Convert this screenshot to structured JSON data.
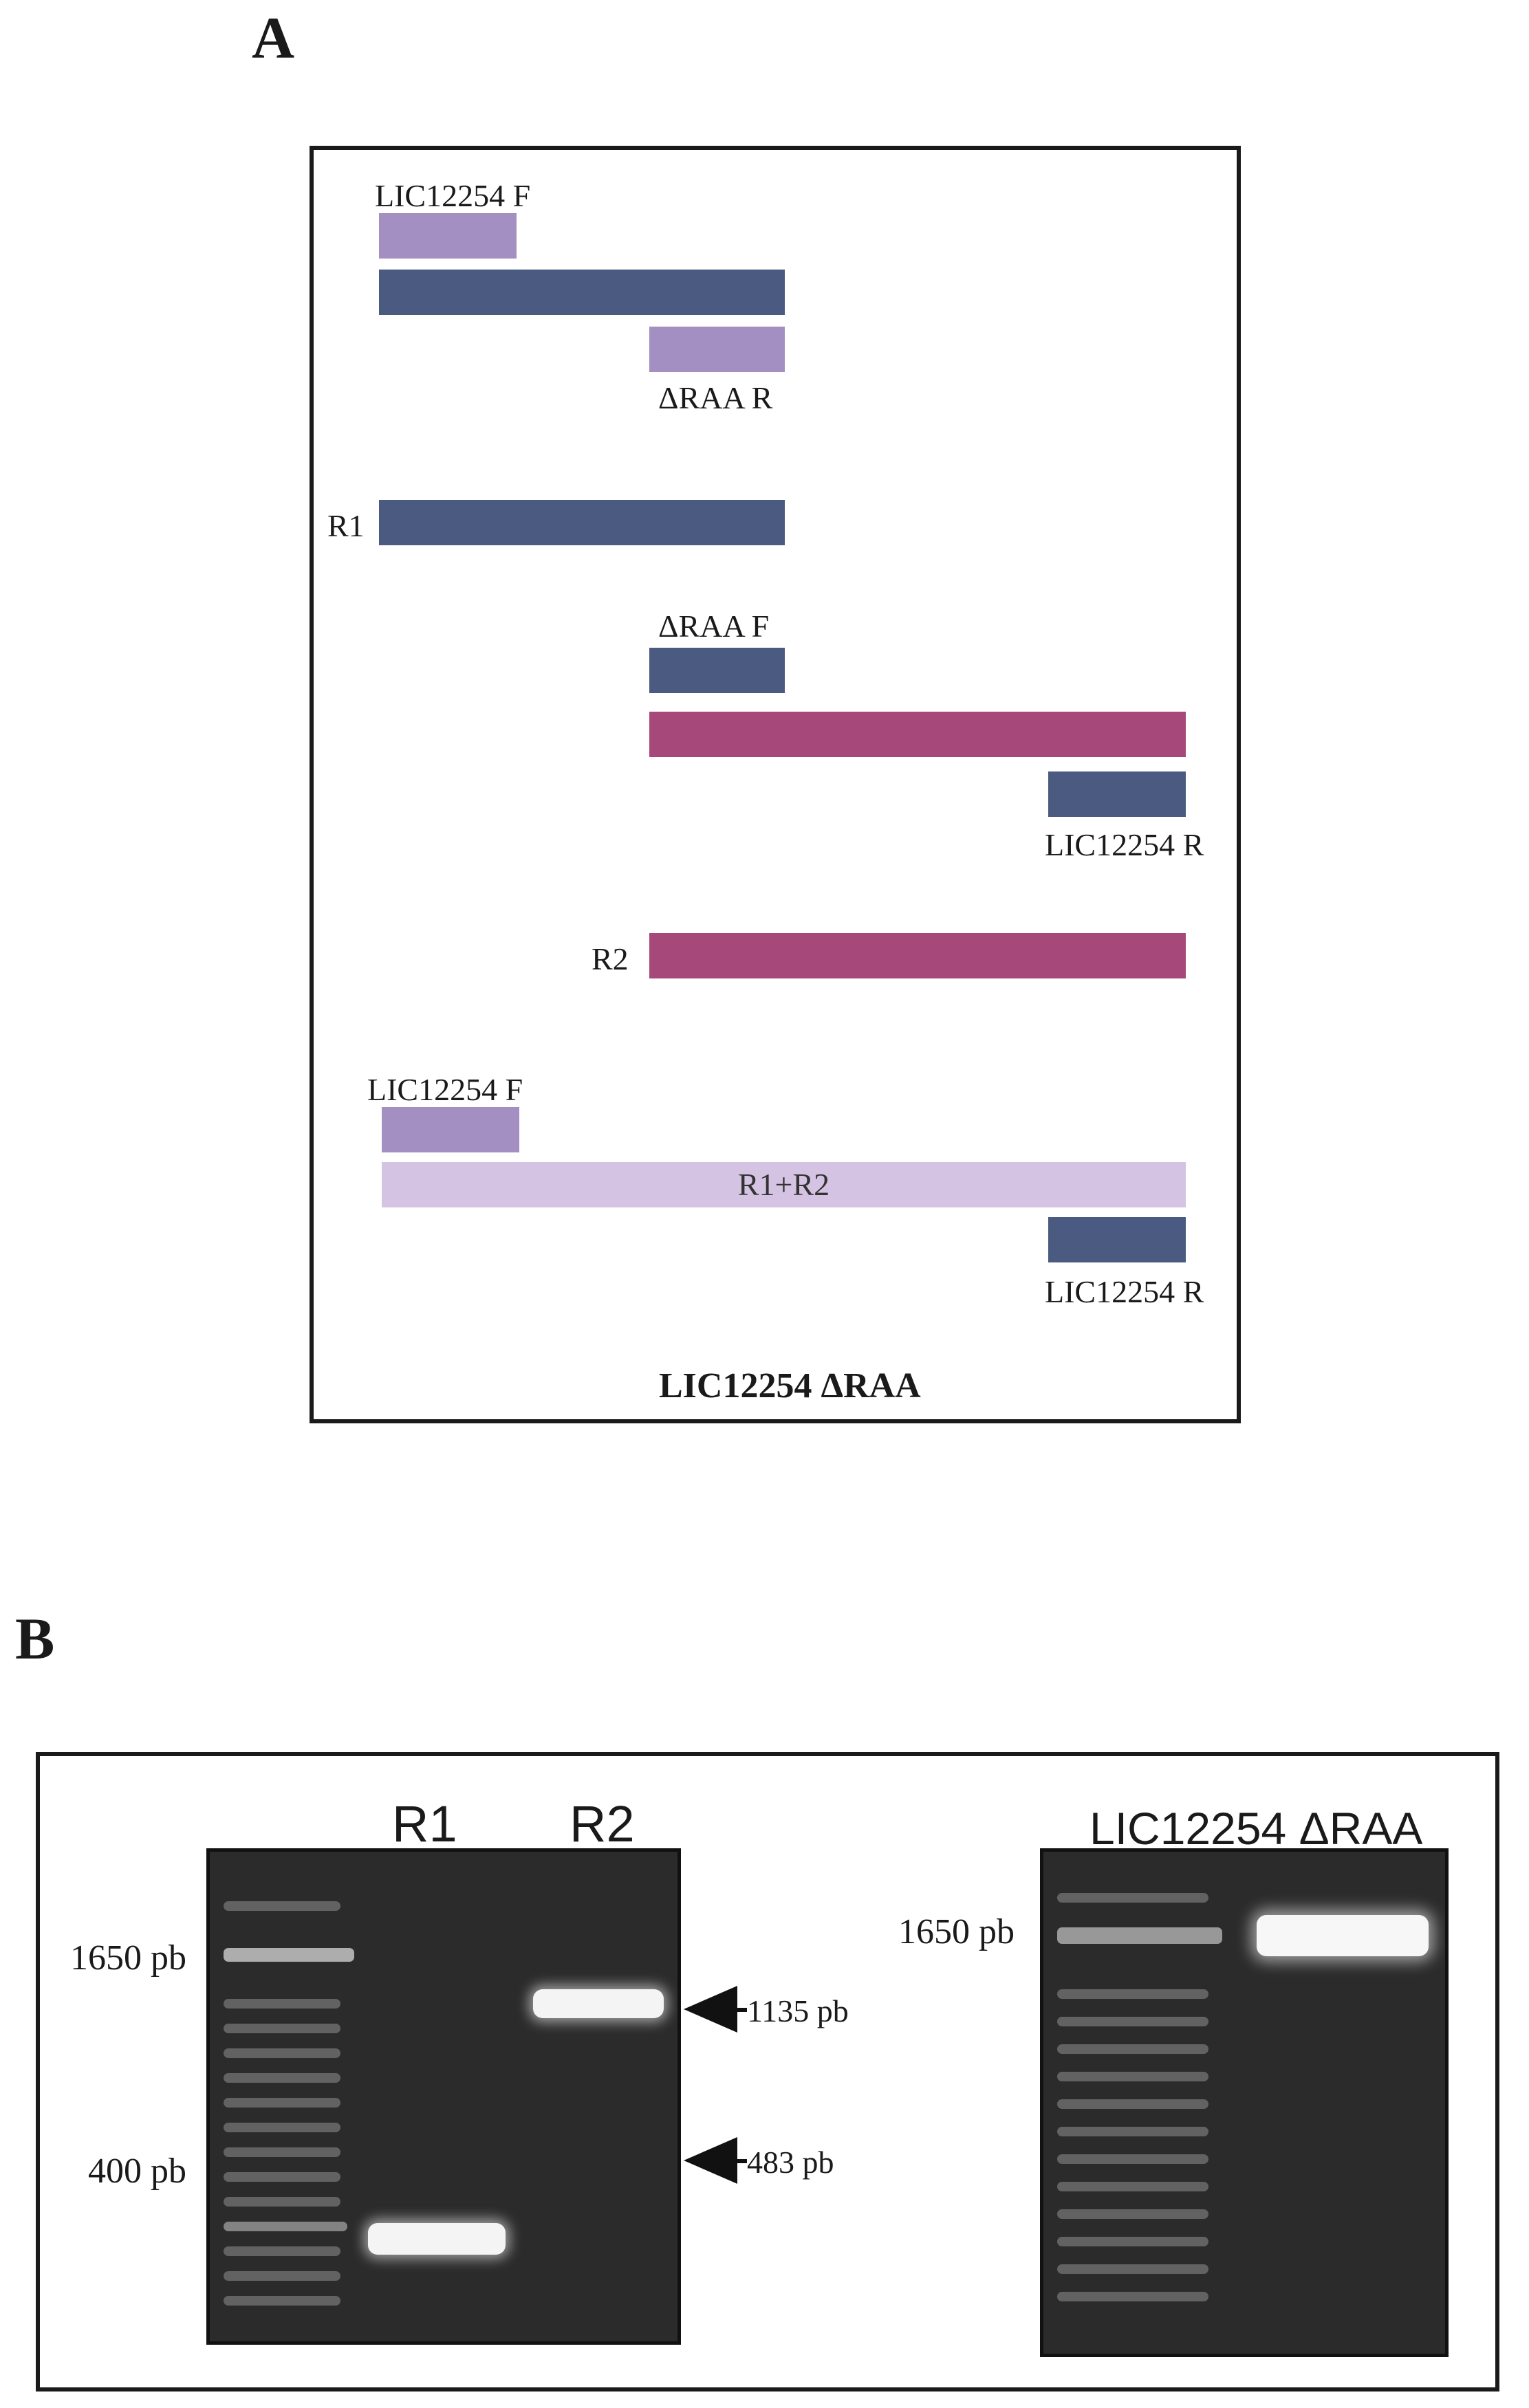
{
  "panel_a": {
    "letter": "A",
    "labels": {
      "f1": "LIC12254 F",
      "raa_r": "ΔRAA R",
      "r1": "R1",
      "raa_f": "ΔRAA F",
      "r_1": "LIC12254 R",
      "r2": "R2",
      "f2": "LIC12254 F",
      "r1r2": "R1+R2",
      "r_2": "LIC12254 R"
    },
    "caption": "LIC12254 ΔRAA",
    "colors": {
      "primer_light": "#a48fc2",
      "navy": "#4b5a80",
      "magenta": "#a6497a",
      "fused": "#d4c3e2"
    }
  },
  "panel_b": {
    "letter": "B",
    "gel1": {
      "lanes": [
        "R1",
        "R2"
      ],
      "ladder_labels": [
        "1650 pb",
        "400 pb"
      ],
      "arrows": [
        "1135 pb",
        "483 pb"
      ]
    },
    "gel2": {
      "title": "LIC12254 ΔRAA",
      "ladder_labels": [
        "1650 pb"
      ]
    }
  }
}
